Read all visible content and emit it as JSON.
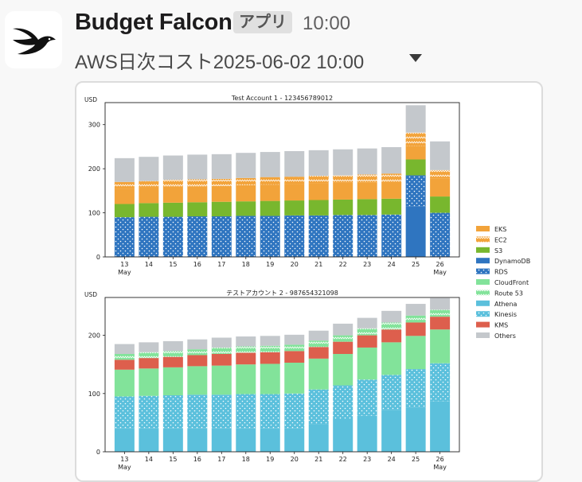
{
  "message": {
    "sender": "Budget Falcon",
    "app_badge": "アプリ",
    "time": "10:00",
    "title": "AWS日次コスト2025-06-02 10:00"
  },
  "colors": {
    "EKS": "#f2a33a",
    "EC2": "#f2a33a",
    "S3": "#78b72e",
    "DynamoDB": "#2f75c0",
    "RDS": "#2f75c0",
    "CloudFront": "#82e39a",
    "Route 53": "#82e39a",
    "Athena": "#5bc0dc",
    "Kinesis": "#5bc0dc",
    "KMS": "#dd5f4d",
    "Others": "#c4c8cc"
  },
  "chart_data": [
    {
      "type": "bar",
      "title": "Test Account 1 - 123456789012",
      "ylabel": "USD",
      "ylim": [
        0,
        350
      ],
      "yticks": [
        0,
        100,
        200,
        300
      ],
      "categories": [
        "13",
        "14",
        "15",
        "16",
        "17",
        "18",
        "19",
        "20",
        "21",
        "22",
        "23",
        "24",
        "25",
        "26"
      ],
      "month_labels": {
        "13": "May",
        "26": "May"
      },
      "series": [
        {
          "name": "DynamoDB",
          "values": [
            0,
            0,
            0,
            0,
            0,
            0,
            0,
            0,
            0,
            0,
            0,
            0,
            115,
            0
          ]
        },
        {
          "name": "RDS",
          "values": [
            90,
            91,
            91,
            92,
            92,
            93,
            93,
            94,
            94,
            95,
            95,
            96,
            70,
            100
          ]
        },
        {
          "name": "S3",
          "values": [
            30,
            31,
            32,
            32,
            33,
            33,
            34,
            34,
            35,
            35,
            36,
            36,
            36,
            37
          ]
        },
        {
          "name": "EKS",
          "values": [
            35,
            35,
            36,
            36,
            36,
            37,
            37,
            37,
            38,
            38,
            38,
            39,
            30,
            40
          ]
        },
        {
          "name": "EC2",
          "values": [
            15,
            15,
            16,
            16,
            16,
            16,
            17,
            17,
            17,
            17,
            18,
            18,
            31,
            20
          ]
        },
        {
          "name": "Others",
          "values": [
            54,
            55,
            55,
            56,
            56,
            57,
            57,
            58,
            58,
            59,
            59,
            60,
            62,
            65
          ]
        }
      ]
    },
    {
      "type": "bar",
      "title": "テストアカウント 2 - 987654321098",
      "ylabel": "USD",
      "ylim": [
        0,
        265
      ],
      "yticks": [
        0,
        100,
        200
      ],
      "categories": [
        "13",
        "14",
        "15",
        "16",
        "17",
        "18",
        "19",
        "20",
        "21",
        "22",
        "23",
        "24",
        "25",
        "26"
      ],
      "month_labels": {
        "13": "May",
        "26": "May"
      },
      "series": [
        {
          "name": "Athena",
          "values": [
            40,
            40,
            40,
            40,
            40,
            40,
            40,
            40,
            47,
            56,
            62,
            72,
            76,
            87
          ]
        },
        {
          "name": "Kinesis",
          "values": [
            55,
            56,
            57,
            58,
            58,
            59,
            59,
            60,
            60,
            58,
            62,
            60,
            66,
            65
          ]
        },
        {
          "name": "CloudFront",
          "values": [
            46,
            47,
            48,
            49,
            50,
            51,
            52,
            53,
            53,
            54,
            55,
            56,
            57,
            58
          ]
        },
        {
          "name": "KMS",
          "values": [
            17,
            18,
            18,
            19,
            20,
            20,
            20,
            20,
            20,
            21,
            21,
            22,
            23,
            22
          ]
        },
        {
          "name": "Route 53",
          "values": [
            10,
            10,
            10,
            10,
            11,
            11,
            11,
            11,
            11,
            11,
            12,
            12,
            12,
            12
          ]
        },
        {
          "name": "Others",
          "values": [
            17,
            17,
            17,
            17,
            17,
            17,
            17,
            17,
            17,
            20,
            18,
            20,
            20,
            20
          ]
        }
      ]
    }
  ],
  "legend": [
    "EKS",
    "EC2",
    "S3",
    "DynamoDB",
    "RDS",
    "CloudFront",
    "Route 53",
    "Athena",
    "Kinesis",
    "KMS",
    "Others"
  ]
}
